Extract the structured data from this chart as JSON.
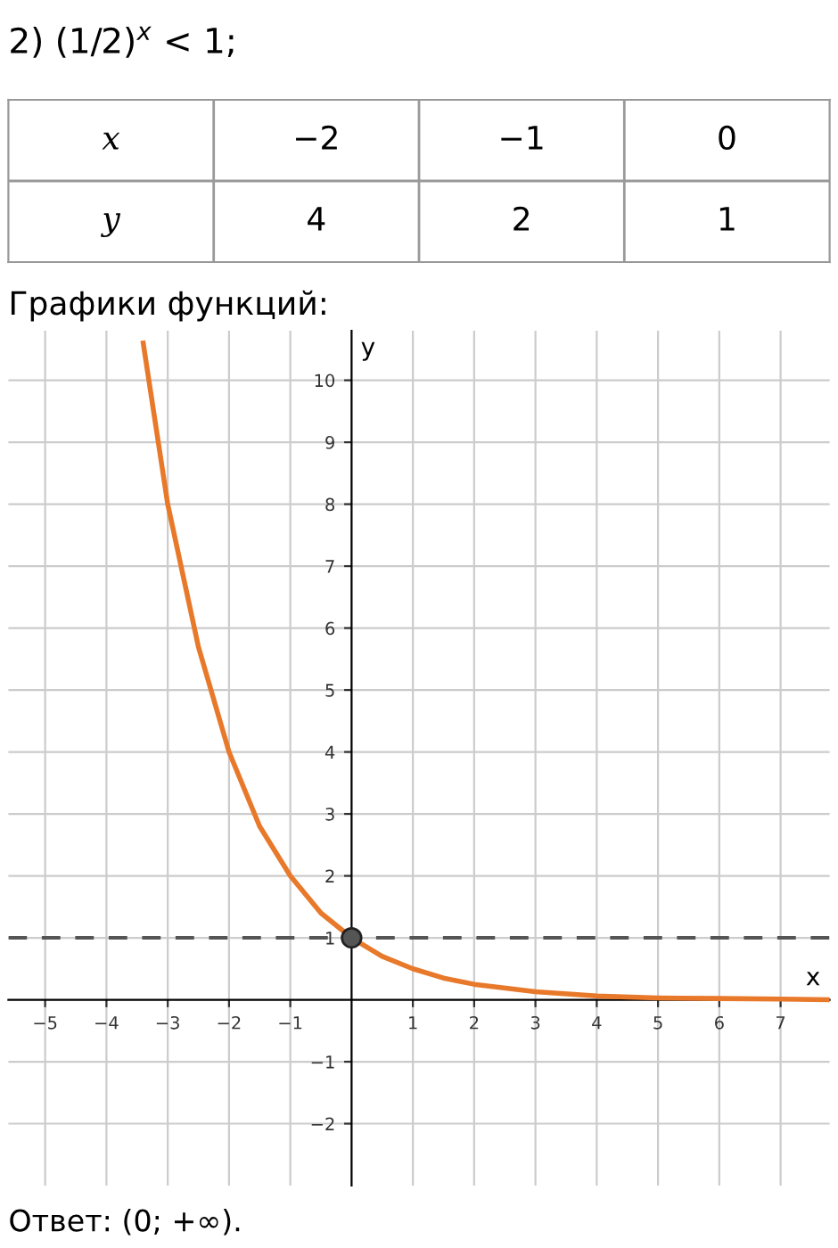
{
  "chart_data": [
    {
      "type": "other",
      "title": "2) (1/2)$^{x}$ < 1;",
      "xlabel": "x",
      "ylabel": "y",
      "categories": [
        "−2",
        "−1",
        "0"
      ],
      "values": [
        4,
        2,
        1
      ],
      "data_labels": true
    },
    {
      "type": "line",
      "title": "Графики функций:",
      "xlabel": "x",
      "ylabel": "y",
      "xlim": [
        -5.6,
        7.8
      ],
      "ylim": [
        -3.0,
        10.8
      ],
      "xticks": [
        -5,
        -4,
        -3,
        -2,
        -1,
        1,
        2,
        3,
        4,
        5,
        6,
        7
      ],
      "yticks": [
        -2,
        -1,
        1,
        2,
        3,
        4,
        5,
        6,
        7,
        8,
        9,
        10
      ],
      "grid": true,
      "series": [
        {
          "type": "line",
          "color": "#e8792b",
          "x": [
            -3.4,
            -3,
            -2.5,
            -2,
            -1.5,
            -1,
            -0.5,
            0,
            0.5,
            1,
            1.5,
            2,
            3,
            4,
            5,
            6,
            7,
            7.8
          ],
          "values": [
            10.6,
            8,
            5.7,
            4,
            2.8,
            2,
            1.4,
            1,
            0.7,
            0.5,
            0.35,
            0.25,
            0.13,
            0.06,
            0.03,
            0.02,
            0.01,
            0
          ]
        },
        {
          "type": "scatter",
          "color": "#555555",
          "marker": "circle",
          "x": [
            0
          ],
          "values": [
            1
          ]
        }
      ],
      "ref_lines": [
        {
          "axis": "y",
          "value": 1,
          "color": "#555555",
          "line_style": "dashed"
        }
      ],
      "annotations": [
        "Ответ: (0; +∞)."
      ]
    }
  ]
}
